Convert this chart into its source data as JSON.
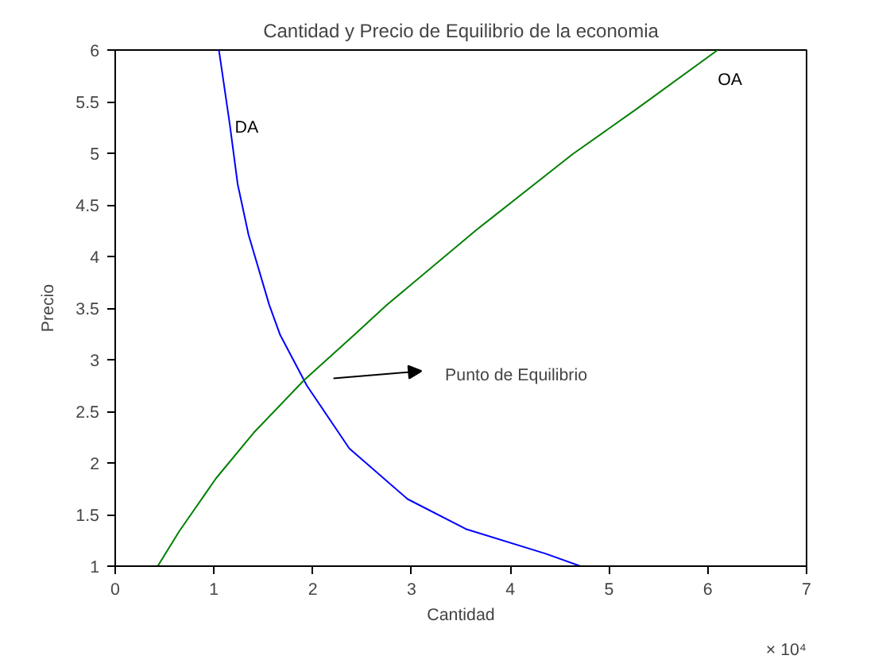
{
  "chart_data": {
    "type": "line",
    "title": "Cantidad y Precio de Equilibrio de la economia",
    "xlabel": "Cantidad",
    "ylabel": "Precio",
    "xlim": [
      0,
      7
    ],
    "ylim": [
      1,
      6
    ],
    "xticks": [
      0,
      1,
      2,
      3,
      4,
      5,
      6,
      7
    ],
    "yticks": [
      1,
      1.5,
      2,
      2.5,
      3,
      3.5,
      4,
      4.5,
      5,
      5.5,
      6
    ],
    "grid": false,
    "marker": "none",
    "line_style": "solid",
    "series": [
      {
        "name": "DA",
        "color": "#0000ff",
        "x": [
          1.05,
          1.16,
          1.24,
          1.35,
          1.56,
          1.67,
          1.94,
          2.37,
          2.96,
          3.55,
          4.36,
          4.71
        ],
        "values": [
          6,
          5.28,
          4.7,
          4.21,
          3.53,
          3.24,
          2.75,
          2.14,
          1.65,
          1.36,
          1.12,
          1
        ]
      },
      {
        "name": "OA",
        "color": "#008000",
        "x": [
          0.43,
          0.65,
          1.02,
          1.4,
          1.91,
          2.42,
          2.75,
          3.66,
          3.82,
          4.63,
          5.28,
          6.1
        ],
        "values": [
          1,
          1.34,
          1.85,
          2.29,
          2.8,
          3.24,
          3.53,
          4.26,
          4.38,
          4.99,
          5.43,
          6
        ]
      }
    ],
    "annotations": [
      "Punto de Equilibrio",
      "× 10⁴"
    ]
  }
}
